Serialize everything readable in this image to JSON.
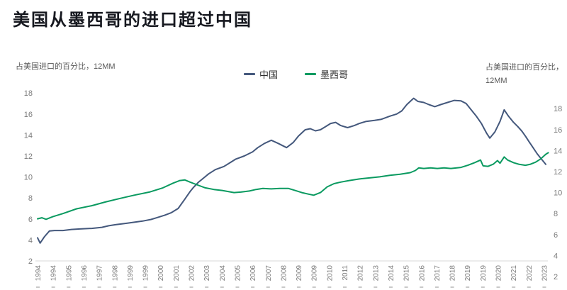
{
  "title": "美国从墨西哥的进口超过中国",
  "axes": {
    "left_label": "占美国进口的百分比，12MM",
    "right_label_line1": "占美国进口的百分比，",
    "right_label_line2": "12MM"
  },
  "legend": {
    "items": [
      {
        "label": "中国",
        "color": "#44587c"
      },
      {
        "label": "墨西哥",
        "color": "#0a9a60"
      }
    ]
  },
  "colors": {
    "china_line": "#44587c",
    "mexico_line": "#0a9a60",
    "axis_text": "#7b7b7b",
    "axis_line": "#d8d8d8",
    "title_text": "#16181f"
  },
  "chart_data": {
    "type": "line",
    "title": "美国从墨西哥的进口超过中国",
    "ylabel_left": "占美国进口的百分比，12MM",
    "ylabel_right": "占美国进口的百分比，12MM",
    "ylim_left": [
      2,
      18
    ],
    "ylim_right": [
      2,
      18
    ],
    "y_ticks": [
      18,
      16,
      14,
      12,
      10,
      8,
      6,
      4,
      2
    ],
    "right_axis_note": "right axis scale is shifted down ~1.6 units versus left axis",
    "xlim": [
      1994,
      2024.2
    ],
    "grid": false,
    "legend_position": "top-center",
    "x_tick_labels": [
      "1994",
      "1994",
      "1995",
      "1996",
      "1997",
      "1998",
      "1999",
      "1999",
      "2000",
      "2001",
      "2002",
      "2003",
      "2004",
      "2005",
      "2006",
      "2007",
      "2008",
      "2009",
      "2009",
      "2010",
      "2011",
      "2012",
      "2013",
      "2014",
      "2015",
      "2016",
      "2017",
      "2018",
      "2019",
      "2019",
      "2020",
      "2021",
      "2022",
      "2023"
    ],
    "series": [
      {
        "name": "中国",
        "axis": "left",
        "color": "#44587c",
        "points": [
          [
            1994.0,
            4.2
          ],
          [
            1994.15,
            3.7
          ],
          [
            1994.4,
            4.3
          ],
          [
            1994.7,
            4.85
          ],
          [
            1995.0,
            4.9
          ],
          [
            1995.5,
            4.9
          ],
          [
            1996.0,
            5.0
          ],
          [
            1996.5,
            5.05
          ],
          [
            1997.2,
            5.1
          ],
          [
            1997.8,
            5.2
          ],
          [
            1998.2,
            5.35
          ],
          [
            1998.6,
            5.45
          ],
          [
            1999.3,
            5.6
          ],
          [
            2000.2,
            5.8
          ],
          [
            2000.7,
            5.95
          ],
          [
            2001.0,
            6.1
          ],
          [
            2001.5,
            6.35
          ],
          [
            2001.9,
            6.6
          ],
          [
            2002.3,
            7.0
          ],
          [
            2002.7,
            7.9
          ],
          [
            2003.0,
            8.6
          ],
          [
            2003.2,
            9.0
          ],
          [
            2003.5,
            9.5
          ],
          [
            2003.8,
            9.9
          ],
          [
            2004.1,
            10.3
          ],
          [
            2004.5,
            10.7
          ],
          [
            2005.0,
            11.0
          ],
          [
            2005.4,
            11.4
          ],
          [
            2005.7,
            11.7
          ],
          [
            2006.2,
            12.0
          ],
          [
            2006.7,
            12.4
          ],
          [
            2007.0,
            12.8
          ],
          [
            2007.4,
            13.2
          ],
          [
            2007.8,
            13.5
          ],
          [
            2008.2,
            13.2
          ],
          [
            2008.7,
            12.8
          ],
          [
            2009.1,
            13.3
          ],
          [
            2009.4,
            13.9
          ],
          [
            2009.8,
            14.5
          ],
          [
            2010.1,
            14.6
          ],
          [
            2010.4,
            14.4
          ],
          [
            2010.7,
            14.5
          ],
          [
            2011.0,
            14.8
          ],
          [
            2011.3,
            15.1
          ],
          [
            2011.6,
            15.2
          ],
          [
            2011.9,
            14.9
          ],
          [
            2012.3,
            14.7
          ],
          [
            2012.7,
            14.9
          ],
          [
            2013.0,
            15.1
          ],
          [
            2013.4,
            15.3
          ],
          [
            2013.9,
            15.4
          ],
          [
            2014.3,
            15.5
          ],
          [
            2014.8,
            15.8
          ],
          [
            2015.2,
            16.0
          ],
          [
            2015.5,
            16.3
          ],
          [
            2015.8,
            16.9
          ],
          [
            2016.0,
            17.2
          ],
          [
            2016.2,
            17.5
          ],
          [
            2016.45,
            17.2
          ],
          [
            2016.8,
            17.1
          ],
          [
            2017.1,
            16.9
          ],
          [
            2017.45,
            16.7
          ],
          [
            2017.8,
            16.9
          ],
          [
            2018.2,
            17.1
          ],
          [
            2018.6,
            17.3
          ],
          [
            2019.0,
            17.25
          ],
          [
            2019.3,
            17.0
          ],
          [
            2019.6,
            16.4
          ],
          [
            2019.9,
            15.8
          ],
          [
            2020.2,
            15.1
          ],
          [
            2020.5,
            14.2
          ],
          [
            2020.7,
            13.7
          ],
          [
            2021.0,
            14.3
          ],
          [
            2021.3,
            15.3
          ],
          [
            2021.55,
            16.4
          ],
          [
            2021.8,
            15.8
          ],
          [
            2022.1,
            15.2
          ],
          [
            2022.35,
            14.8
          ],
          [
            2022.6,
            14.35
          ],
          [
            2022.8,
            13.9
          ],
          [
            2023.0,
            13.4
          ],
          [
            2023.25,
            12.8
          ],
          [
            2023.5,
            12.2
          ],
          [
            2023.75,
            11.7
          ],
          [
            2024.0,
            11.2
          ]
        ]
      },
      {
        "name": "墨西哥",
        "axis": "right",
        "color": "#0a9a60",
        "points": [
          [
            1994.0,
            7.5
          ],
          [
            1994.25,
            7.6
          ],
          [
            1994.5,
            7.45
          ],
          [
            1994.9,
            7.7
          ],
          [
            1995.5,
            8.0
          ],
          [
            1996.3,
            8.45
          ],
          [
            1997.2,
            8.75
          ],
          [
            1998.0,
            9.1
          ],
          [
            1998.9,
            9.45
          ],
          [
            1999.7,
            9.75
          ],
          [
            2000.6,
            10.05
          ],
          [
            2001.4,
            10.45
          ],
          [
            2002.0,
            10.9
          ],
          [
            2002.4,
            11.15
          ],
          [
            2002.7,
            11.2
          ],
          [
            2003.0,
            11.0
          ],
          [
            2003.4,
            10.75
          ],
          [
            2003.9,
            10.45
          ],
          [
            2004.4,
            10.3
          ],
          [
            2004.9,
            10.2
          ],
          [
            2005.6,
            10.0
          ],
          [
            2006.0,
            10.05
          ],
          [
            2006.5,
            10.15
          ],
          [
            2006.9,
            10.3
          ],
          [
            2007.3,
            10.4
          ],
          [
            2007.8,
            10.35
          ],
          [
            2008.3,
            10.4
          ],
          [
            2008.8,
            10.4
          ],
          [
            2009.2,
            10.2
          ],
          [
            2009.6,
            10.0
          ],
          [
            2010.0,
            9.85
          ],
          [
            2010.3,
            9.75
          ],
          [
            2010.7,
            10.0
          ],
          [
            2011.1,
            10.55
          ],
          [
            2011.5,
            10.85
          ],
          [
            2011.9,
            11.0
          ],
          [
            2012.4,
            11.15
          ],
          [
            2013.0,
            11.3
          ],
          [
            2013.6,
            11.4
          ],
          [
            2014.2,
            11.5
          ],
          [
            2014.8,
            11.65
          ],
          [
            2015.4,
            11.75
          ],
          [
            2016.0,
            11.9
          ],
          [
            2016.3,
            12.1
          ],
          [
            2016.5,
            12.35
          ],
          [
            2016.8,
            12.3
          ],
          [
            2017.2,
            12.35
          ],
          [
            2017.6,
            12.3
          ],
          [
            2018.0,
            12.35
          ],
          [
            2018.4,
            12.3
          ],
          [
            2019.0,
            12.4
          ],
          [
            2019.4,
            12.6
          ],
          [
            2019.8,
            12.85
          ],
          [
            2020.15,
            13.1
          ],
          [
            2020.3,
            12.55
          ],
          [
            2020.6,
            12.5
          ],
          [
            2020.9,
            12.7
          ],
          [
            2021.15,
            13.05
          ],
          [
            2021.3,
            12.8
          ],
          [
            2021.55,
            13.4
          ],
          [
            2021.75,
            13.1
          ],
          [
            2022.1,
            12.85
          ],
          [
            2022.4,
            12.7
          ],
          [
            2022.8,
            12.6
          ],
          [
            2023.1,
            12.7
          ],
          [
            2023.4,
            12.9
          ],
          [
            2023.7,
            13.2
          ],
          [
            2024.0,
            13.65
          ],
          [
            2024.15,
            13.8
          ]
        ]
      }
    ]
  }
}
